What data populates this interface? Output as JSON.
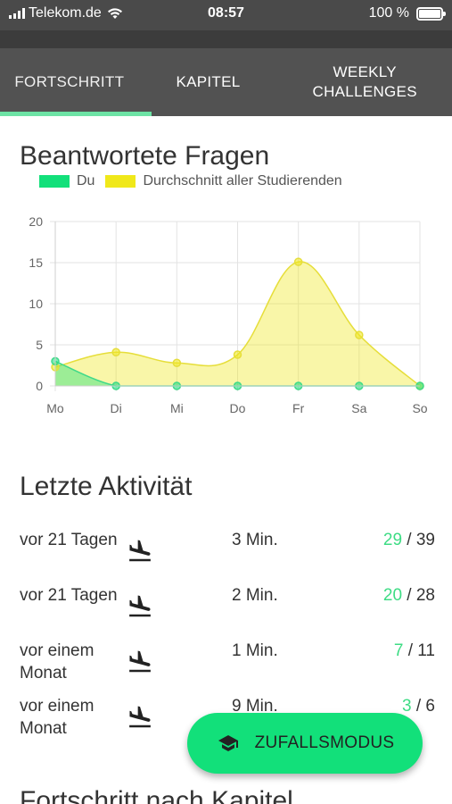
{
  "status_bar": {
    "carrier": "Telekom.de",
    "time": "08:57",
    "battery": "100 %"
  },
  "tabs": [
    {
      "label": "FORTSCHRITT",
      "active": true
    },
    {
      "label": "KAPITEL",
      "active": false
    },
    {
      "label": "WEEKLY CHALLENGES",
      "active": false
    }
  ],
  "answered_section": {
    "title": "Beantwortete Fragen",
    "legend": [
      {
        "label": "Du",
        "color": "#12e07a"
      },
      {
        "label": "Durchschnitt aller Studierenden",
        "color": "#f0e81a"
      }
    ]
  },
  "chart_data": {
    "type": "area",
    "categories": [
      "Mo",
      "Di",
      "Mi",
      "Do",
      "Fr",
      "Sa",
      "So"
    ],
    "series": [
      {
        "name": "Du",
        "values": [
          3,
          0,
          0,
          0,
          0,
          0,
          0
        ],
        "color": "#12e07a"
      },
      {
        "name": "Durchschnitt aller Studierenden",
        "values": [
          2.3,
          4.1,
          2.8,
          3.8,
          15.1,
          6.2,
          0
        ],
        "color": "#f0e81a"
      }
    ],
    "ylim": [
      0,
      20
    ],
    "yticks": [
      0,
      5,
      10,
      15,
      20
    ],
    "grid": true,
    "legend_position": "top-left"
  },
  "activity_section": {
    "title": "Letzte Aktivität",
    "rows": [
      {
        "when": "vor 21 Tagen",
        "icon": "landing-plane-icon",
        "duration": "3 Min.",
        "correct": "29",
        "total": "/ 39"
      },
      {
        "when": "vor 21 Tagen",
        "icon": "landing-plane-icon",
        "duration": "2 Min.",
        "correct": "20",
        "total": "/ 28"
      },
      {
        "when": "vor einem Monat",
        "icon": "landing-plane-icon",
        "duration": "1 Min.",
        "correct": "7",
        "total": "/ 11"
      },
      {
        "when": "vor einem Monat",
        "icon": "landing-plane-icon",
        "duration": "9 Min.",
        "correct": "3",
        "total": "/ 6"
      }
    ]
  },
  "chapter_section": {
    "title": "Fortschritt nach Kapitel"
  },
  "fab": {
    "label": "ZUFALLSMODUS",
    "icon": "graduation-cap-icon"
  }
}
